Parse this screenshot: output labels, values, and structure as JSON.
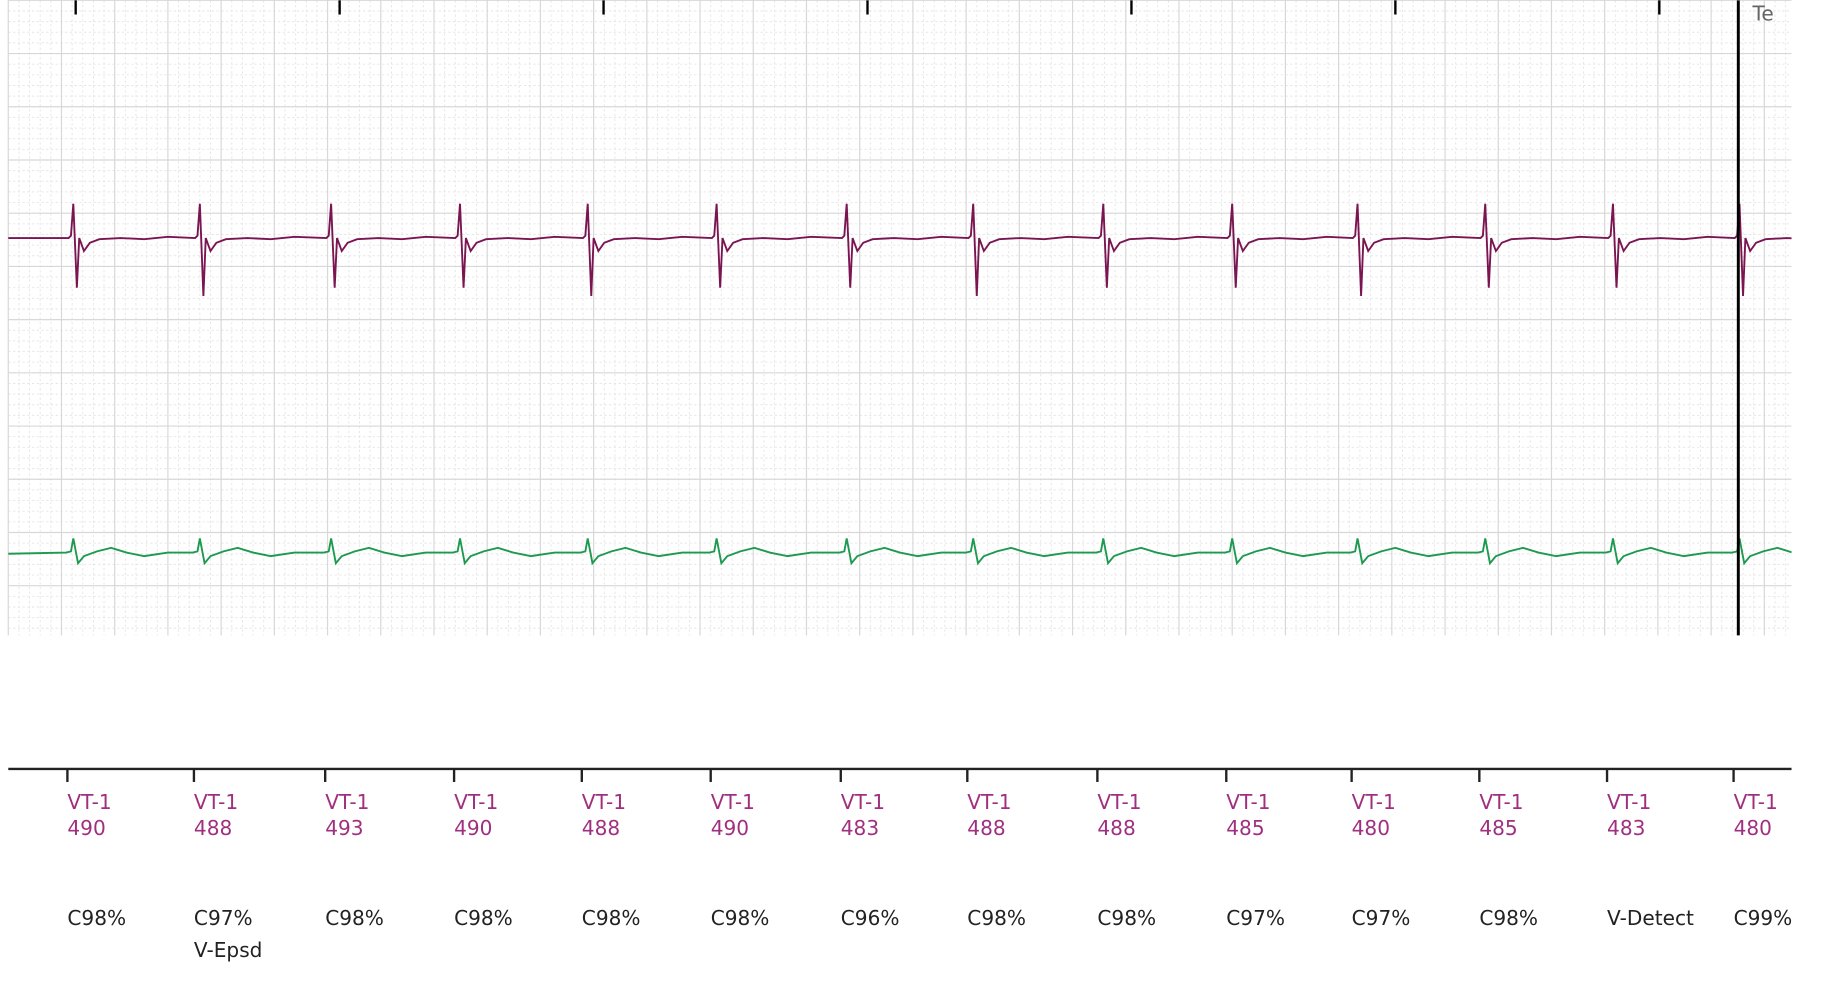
{
  "header_text": "Te",
  "markers": [
    {
      "label": "VT-1",
      "interval": 490,
      "class": "C98%"
    },
    {
      "label": "VT-1",
      "interval": 488,
      "class": "C97%",
      "note": "V-Epsd"
    },
    {
      "label": "VT-1",
      "interval": 493,
      "class": "C98%"
    },
    {
      "label": "VT-1",
      "interval": 490,
      "class": "C98%"
    },
    {
      "label": "VT-1",
      "interval": 488,
      "class": "C98%"
    },
    {
      "label": "VT-1",
      "interval": 490,
      "class": "C98%"
    },
    {
      "label": "VT-1",
      "interval": 483,
      "class": "C96%"
    },
    {
      "label": "VT-1",
      "interval": 488,
      "class": "C98%"
    },
    {
      "label": "VT-1",
      "interval": 488,
      "class": "C98%"
    },
    {
      "label": "VT-1",
      "interval": 485,
      "class": "C97%"
    },
    {
      "label": "VT-1",
      "interval": 480,
      "class": "C97%"
    },
    {
      "label": "VT-1",
      "interval": 485,
      "class": "C98%"
    },
    {
      "label": "VT-1",
      "interval": 483,
      "class": "V-Detect"
    },
    {
      "label": "VT-1",
      "interval": 480,
      "class": "C99%"
    }
  ]
}
